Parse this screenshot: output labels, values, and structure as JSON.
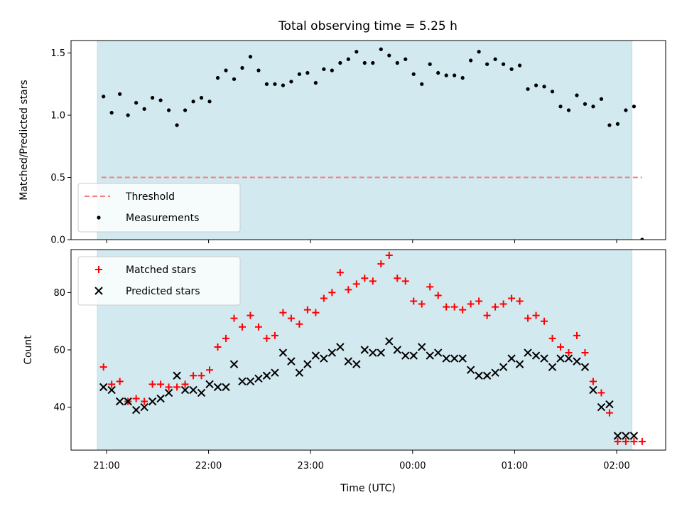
{
  "chart_data": {
    "title": "Total observing time = 5.25 h",
    "xlabel": "Time (UTC)",
    "x_tick_labels": [
      "21:00",
      "22:00",
      "23:00",
      "00:00",
      "01:00",
      "02:00"
    ],
    "shade_color": "#d3e9f0",
    "panels": [
      {
        "type": "scatter",
        "ylabel": "Matched/Predicted stars",
        "ylim": [
          0.0,
          1.6
        ],
        "yticks": [
          0.0,
          0.5,
          1.0,
          1.5
        ],
        "legend_position": "lower-left",
        "threshold": {
          "name": "Threshold",
          "value": 0.5,
          "color": "#f08080",
          "x_start_hours": -0.05,
          "x_end_hours": 5.25
        },
        "series": [
          {
            "name": "Measurements",
            "marker": "dot",
            "color": "#000000",
            "x_hours": [
              -0.03,
              0.05,
              0.13,
              0.21,
              0.29,
              0.37,
              0.45,
              0.53,
              0.61,
              0.69,
              0.77,
              0.85,
              0.93,
              1.01,
              1.09,
              1.17,
              1.25,
              1.33,
              1.41,
              1.49,
              1.57,
              1.65,
              1.73,
              1.81,
              1.89,
              1.97,
              2.05,
              2.13,
              2.21,
              2.29,
              2.37,
              2.45,
              2.53,
              2.61,
              2.69,
              2.77,
              2.85,
              2.93,
              3.01,
              3.09,
              3.17,
              3.25,
              3.33,
              3.41,
              3.49,
              3.57,
              3.65,
              3.73,
              3.81,
              3.89,
              3.97,
              4.05,
              4.13,
              4.21,
              4.29,
              4.37,
              4.45,
              4.53,
              4.61,
              4.69,
              4.77,
              4.85,
              4.93,
              5.01,
              5.09,
              5.17,
              5.25
            ],
            "y": [
              1.15,
              1.02,
              1.17,
              1.0,
              1.1,
              1.05,
              1.14,
              1.12,
              1.04,
              0.92,
              1.04,
              1.11,
              1.14,
              1.11,
              1.3,
              1.36,
              1.29,
              1.38,
              1.47,
              1.36,
              1.25,
              1.25,
              1.24,
              1.27,
              1.33,
              1.34,
              1.26,
              1.37,
              1.36,
              1.42,
              1.45,
              1.51,
              1.42,
              1.42,
              1.53,
              1.48,
              1.42,
              1.45,
              1.33,
              1.25,
              1.41,
              1.34,
              1.32,
              1.32,
              1.3,
              1.44,
              1.51,
              1.41,
              1.45,
              1.41,
              1.37,
              1.4,
              1.21,
              1.24,
              1.23,
              1.19,
              1.07,
              1.04,
              1.16,
              1.09,
              1.07,
              1.13,
              0.92,
              0.93,
              1.04,
              1.07,
              0.0
            ]
          }
        ]
      },
      {
        "type": "scatter",
        "ylabel": "Count",
        "ylim": [
          25,
          95
        ],
        "yticks": [
          40,
          60,
          80
        ],
        "legend_position": "upper-left",
        "series": [
          {
            "name": "Matched stars",
            "marker": "plus",
            "color": "#ff0000",
            "x_hours": [
              -0.03,
              0.05,
              0.13,
              0.21,
              0.29,
              0.37,
              0.45,
              0.53,
              0.61,
              0.69,
              0.77,
              0.85,
              0.93,
              1.01,
              1.09,
              1.17,
              1.25,
              1.33,
              1.41,
              1.49,
              1.57,
              1.65,
              1.73,
              1.81,
              1.89,
              1.97,
              2.05,
              2.13,
              2.21,
              2.29,
              2.37,
              2.45,
              2.53,
              2.61,
              2.69,
              2.77,
              2.85,
              2.93,
              3.01,
              3.09,
              3.17,
              3.25,
              3.33,
              3.41,
              3.49,
              3.57,
              3.65,
              3.73,
              3.81,
              3.89,
              3.97,
              4.05,
              4.13,
              4.21,
              4.29,
              4.37,
              4.45,
              4.53,
              4.61,
              4.69,
              4.77,
              4.85,
              4.93,
              5.01,
              5.09,
              5.17,
              5.25
            ],
            "y": [
              54,
              48,
              49,
              42,
              43,
              42,
              48,
              48,
              47,
              47,
              48,
              51,
              51,
              53,
              61,
              64,
              71,
              68,
              72,
              68,
              64,
              65,
              73,
              71,
              69,
              74,
              73,
              78,
              80,
              87,
              81,
              83,
              85,
              84,
              90,
              93,
              85,
              84,
              77,
              76,
              82,
              79,
              75,
              75,
              74,
              76,
              77,
              72,
              75,
              76,
              78,
              77,
              71,
              72,
              70,
              64,
              61,
              59,
              65,
              59,
              49,
              45,
              38,
              28,
              28,
              28,
              28
            ]
          },
          {
            "name": "Predicted stars",
            "marker": "x",
            "color": "#000000",
            "x_hours": [
              -0.03,
              0.05,
              0.13,
              0.21,
              0.29,
              0.37,
              0.45,
              0.53,
              0.61,
              0.69,
              0.77,
              0.85,
              0.93,
              1.01,
              1.09,
              1.17,
              1.25,
              1.33,
              1.41,
              1.49,
              1.57,
              1.65,
              1.73,
              1.81,
              1.89,
              1.97,
              2.05,
              2.13,
              2.21,
              2.29,
              2.37,
              2.45,
              2.53,
              2.61,
              2.69,
              2.77,
              2.85,
              2.93,
              3.01,
              3.09,
              3.17,
              3.25,
              3.33,
              3.41,
              3.49,
              3.57,
              3.65,
              3.73,
              3.81,
              3.89,
              3.97,
              4.05,
              4.13,
              4.21,
              4.29,
              4.37,
              4.45,
              4.53,
              4.61,
              4.69,
              4.77,
              4.85,
              4.93,
              5.01,
              5.09,
              5.17
            ],
            "y": [
              47,
              46,
              42,
              42,
              39,
              40,
              42,
              43,
              45,
              51,
              46,
              46,
              45,
              48,
              47,
              47,
              55,
              49,
              49,
              50,
              51,
              52,
              59,
              56,
              52,
              55,
              58,
              57,
              59,
              61,
              56,
              55,
              60,
              59,
              59,
              63,
              60,
              58,
              58,
              61,
              58,
              59,
              57,
              57,
              57,
              53,
              51,
              51,
              52,
              54,
              57,
              55,
              59,
              58,
              57,
              54,
              57,
              57,
              56,
              54,
              46,
              40,
              41,
              30,
              30,
              30
            ]
          }
        ]
      }
    ]
  }
}
